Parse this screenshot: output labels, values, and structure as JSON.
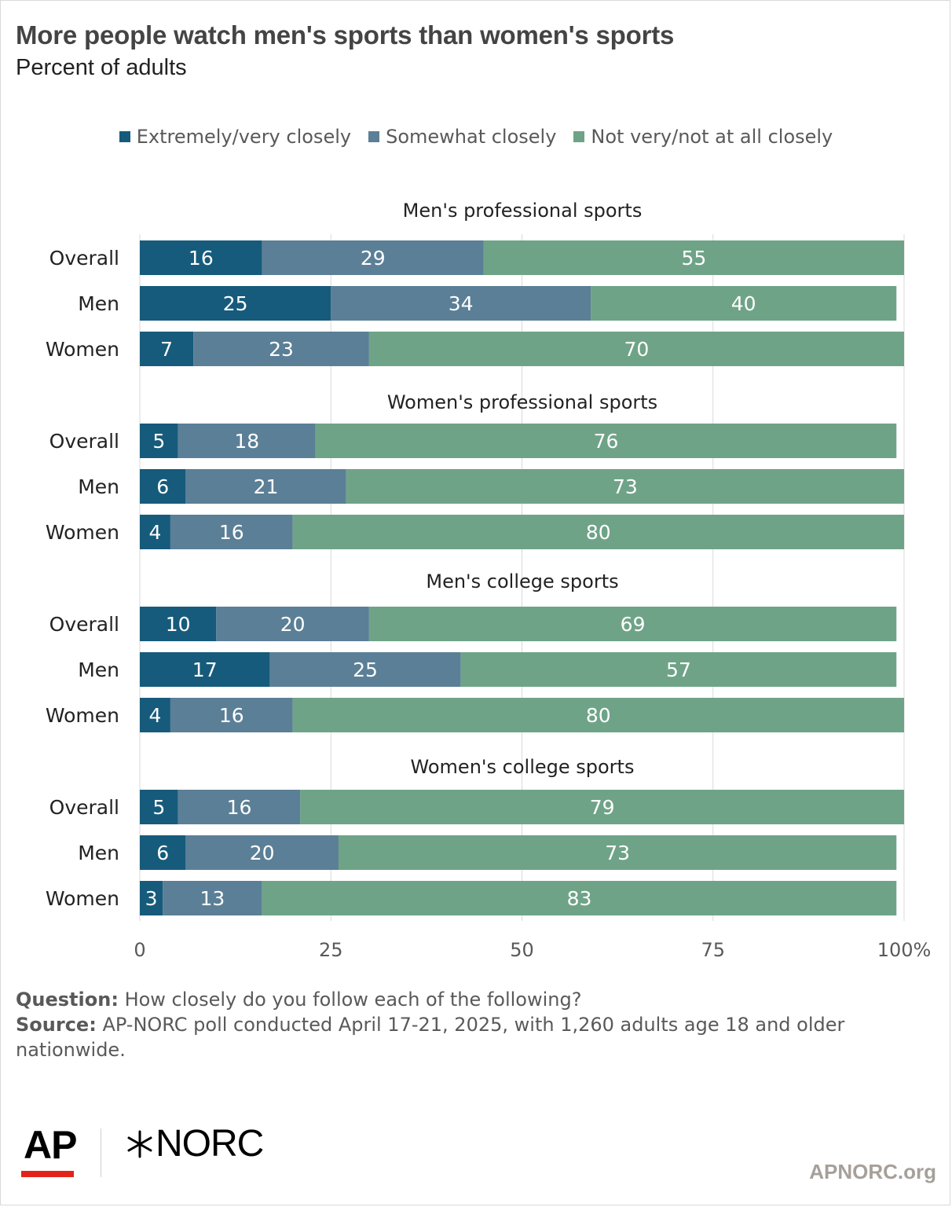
{
  "title": "More people watch men's sports than women's sports",
  "subtitle": "Percent of adults",
  "question_label": "Question:",
  "question_text": "How closely do you follow each of the following?",
  "source_label": "Source:",
  "source_text": "AP-NORC poll conducted April 17-21, 2025, with 1,260 adults age 18 and older nationwide.",
  "logos": {
    "ap": "AP",
    "norc": "NORC",
    "site": "APNORC.org"
  },
  "colors": {
    "extremely": "#165b7b",
    "somewhat": "#5b7f96",
    "not": "#6fa387"
  },
  "chart_data": {
    "type": "bar",
    "orientation": "horizontal",
    "stacked": true,
    "legend": [
      {
        "name": "Extremely/very closely",
        "color": "#165b7b"
      },
      {
        "name": "Somewhat closely",
        "color": "#5b7f96"
      },
      {
        "name": "Not very/not at all closely",
        "color": "#6fa387"
      }
    ],
    "legend_position": "top",
    "xlim": [
      0,
      100
    ],
    "xticks": [
      "0",
      "25",
      "50",
      "75",
      "100%"
    ],
    "xtick_values": [
      0,
      25,
      50,
      75,
      100
    ],
    "grid": true,
    "groups": [
      {
        "title": "Men's professional sports",
        "rows": [
          {
            "label": "Overall",
            "values": [
              16,
              29,
              55
            ]
          },
          {
            "label": "Men",
            "values": [
              25,
              34,
              40
            ]
          },
          {
            "label": "Women",
            "values": [
              7,
              23,
              70
            ]
          }
        ]
      },
      {
        "title": "Women's professional sports",
        "rows": [
          {
            "label": "Overall",
            "values": [
              5,
              18,
              76
            ]
          },
          {
            "label": "Men",
            "values": [
              6,
              21,
              73
            ]
          },
          {
            "label": "Women",
            "values": [
              4,
              16,
              80
            ]
          }
        ]
      },
      {
        "title": "Men's college sports",
        "rows": [
          {
            "label": "Overall",
            "values": [
              10,
              20,
              69
            ]
          },
          {
            "label": "Men",
            "values": [
              17,
              25,
              57
            ]
          },
          {
            "label": "Women",
            "values": [
              4,
              16,
              80
            ]
          }
        ]
      },
      {
        "title": "Women's college sports",
        "rows": [
          {
            "label": "Overall",
            "values": [
              5,
              16,
              79
            ]
          },
          {
            "label": "Men",
            "values": [
              6,
              20,
              73
            ]
          },
          {
            "label": "Women",
            "values": [
              3,
              13,
              83
            ]
          }
        ]
      }
    ]
  }
}
